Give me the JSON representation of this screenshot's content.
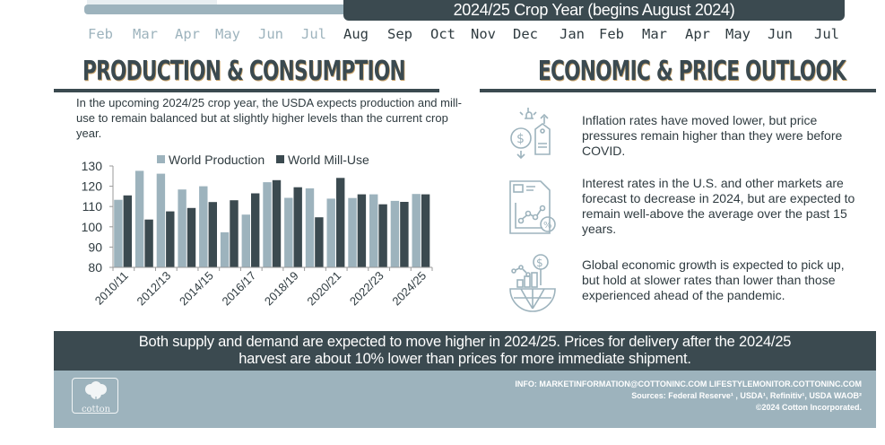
{
  "timeline": {
    "current_crop_year_label": "2024/25 Crop Year (begins August 2024)",
    "prev_months": [
      "Feb",
      "Mar",
      "Apr",
      "May",
      "Jun",
      "Jul"
    ],
    "current_months": [
      "Aug",
      "Sep",
      "Oct",
      "Nov",
      "Dec",
      "Jan",
      "Feb",
      "Mar",
      "Apr",
      "May",
      "Jun",
      "Jul"
    ]
  },
  "production": {
    "heading": "PRODUCTION & CONSUMPTION",
    "intro": "In the upcoming 2024/25 crop year, the USDA expects production and mill-use to remain balanced but at slightly higher levels than the current crop year."
  },
  "outlook": {
    "heading": "ECONOMIC & PRICE OUTLOOK",
    "items": [
      {
        "icon": "price-tag-dollar-icon",
        "text": "Inflation rates have moved lower, but price pressures remain higher than they were before COVID."
      },
      {
        "icon": "interest-rate-chart-icon",
        "text": "Interest rates in the U.S. and other markets are forecast to decrease in 2024, but are expected to remain well-above the average over the past 15 years."
      },
      {
        "icon": "global-growth-icon",
        "text": "Global economic growth is expected to pick up, but hold at slower rates than lower than those experienced ahead of the pandemic."
      }
    ]
  },
  "banner": {
    "line1": "Both supply and demand are expected to move higher in 2024/25. Prices for delivery after the 2024/25",
    "line2": "harvest are about 10% lower than prices for more immediate shipment."
  },
  "footer": {
    "info": "INFO: MARKETINFORMATION@COTTONINC.COM LIFESTYLEMONITOR.COTTONINC.COM",
    "sources": "Sources: Federal Reserve¹ , USDA¹, Refinitiv¹, USDA WAOB²",
    "copyright": "©2024 Cotton Incorporated.",
    "logo_text": "cotton"
  },
  "colors": {
    "dark": "#3b4a50",
    "light": "#9db3bd",
    "accent_shadow": "#c9a36a"
  },
  "chart_data": {
    "type": "bar",
    "title": "",
    "xlabel": "",
    "ylabel": "",
    "ylim": [
      80,
      130
    ],
    "yticks": [
      80,
      90,
      100,
      110,
      120,
      130
    ],
    "categories": [
      "2010/11",
      "2011/12",
      "2012/13",
      "2013/14",
      "2014/15",
      "2015/16",
      "2016/17",
      "2017/18",
      "2018/19",
      "2019/20",
      "2020/21",
      "2021/22",
      "2022/23",
      "2023/24",
      "2024/25"
    ],
    "xtick_labels": [
      "2010/11",
      "2012/13",
      "2014/15",
      "2016/17",
      "2018/19",
      "2020/21",
      "2022/23",
      "2024/25"
    ],
    "legend_position": "top",
    "grid": false,
    "series": [
      {
        "name": "World Production",
        "color": "#9db3bd",
        "values": [
          113.3,
          127.6,
          126.2,
          118.4,
          120.0,
          97.3,
          106.0,
          122.0,
          114.3,
          119.0,
          113.9,
          114.2,
          116.0,
          112.8,
          116.2
        ]
      },
      {
        "name": "World Mill-Use",
        "color": "#3b4a50",
        "values": [
          115.5,
          103.6,
          107.6,
          109.3,
          112.2,
          113.1,
          116.5,
          123.0,
          119.5,
          104.7,
          124.1,
          116.0,
          111.1,
          112.3,
          116.0
        ]
      }
    ]
  }
}
